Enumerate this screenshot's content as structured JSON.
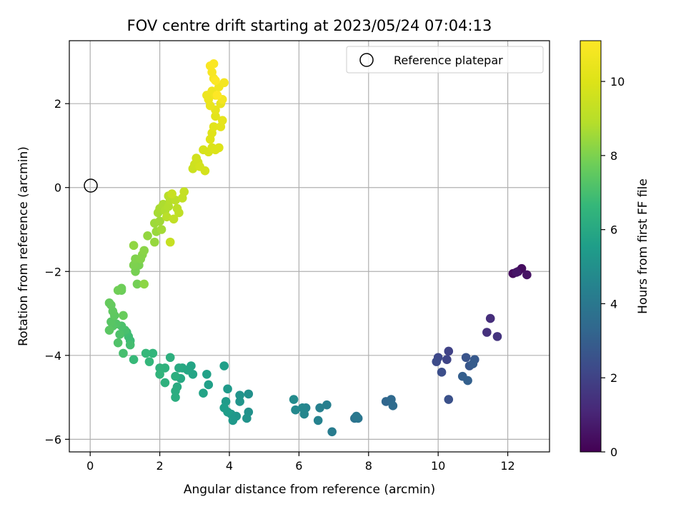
{
  "chart_data": {
    "type": "scatter",
    "title": "FOV centre drift starting at 2023/05/24 07:04:13",
    "xlabel": "Angular distance from reference (arcmin)",
    "ylabel": "Rotation from reference (arcmin)",
    "xlim": [
      -0.6,
      13.2
    ],
    "ylim": [
      -6.3,
      3.5
    ],
    "xticks": [
      0,
      2,
      4,
      6,
      8,
      10,
      12
    ],
    "yticks": [
      -6,
      -4,
      -2,
      0,
      2
    ],
    "grid": true,
    "legend": {
      "placement": "top-right",
      "entries": [
        "Reference platepar"
      ]
    },
    "colorbar": {
      "label": "Hours from first FF file",
      "range": [
        0,
        11.1
      ],
      "ticks": [
        0,
        2,
        4,
        6,
        8,
        10
      ],
      "colormap": "viridis"
    },
    "reference_point": {
      "x": 0,
      "y": 0,
      "label": "Reference platepar"
    },
    "points": [
      [
        12.15,
        -2.05,
        0.3
      ],
      [
        12.3,
        -2.0,
        0.4
      ],
      [
        12.4,
        -1.93,
        0.35
      ],
      [
        12.55,
        -2.08,
        0.5
      ],
      [
        12.25,
        -2.02,
        0.6
      ],
      [
        11.5,
        -3.12,
        1.3
      ],
      [
        11.4,
        -3.45,
        1.4
      ],
      [
        11.7,
        -3.55,
        1.5
      ],
      [
        10.3,
        -3.9,
        2.0
      ],
      [
        10.25,
        -4.1,
        2.1
      ],
      [
        10.0,
        -4.05,
        2.2
      ],
      [
        9.95,
        -4.15,
        2.3
      ],
      [
        10.1,
        -4.4,
        2.4
      ],
      [
        10.3,
        -5.05,
        2.5
      ],
      [
        10.8,
        -4.05,
        2.6
      ],
      [
        10.9,
        -4.25,
        2.7
      ],
      [
        11.05,
        -4.1,
        2.8
      ],
      [
        11.0,
        -4.2,
        2.9
      ],
      [
        10.7,
        -4.5,
        3.0
      ],
      [
        10.85,
        -4.6,
        3.05
      ],
      [
        8.5,
        -5.1,
        3.3
      ],
      [
        8.65,
        -5.05,
        3.4
      ],
      [
        8.7,
        -5.2,
        3.5
      ],
      [
        7.6,
        -5.5,
        3.8
      ],
      [
        7.7,
        -5.5,
        3.9
      ],
      [
        7.65,
        -5.45,
        4.0
      ],
      [
        6.95,
        -5.82,
        4.2
      ],
      [
        6.8,
        -5.18,
        4.3
      ],
      [
        6.6,
        -5.25,
        4.35
      ],
      [
        6.55,
        -5.55,
        4.45
      ],
      [
        6.2,
        -5.25,
        4.5
      ],
      [
        6.15,
        -5.4,
        4.6
      ],
      [
        6.1,
        -5.25,
        4.65
      ],
      [
        5.9,
        -5.3,
        4.7
      ],
      [
        5.85,
        -5.05,
        4.8
      ],
      [
        4.55,
        -4.92,
        5.0
      ],
      [
        4.55,
        -5.35,
        5.05
      ],
      [
        4.5,
        -5.5,
        5.1
      ],
      [
        4.3,
        -4.95,
        5.15
      ],
      [
        4.3,
        -5.1,
        5.2
      ],
      [
        4.2,
        -5.45,
        5.25
      ],
      [
        4.05,
        -5.4,
        5.3
      ],
      [
        4.1,
        -5.55,
        5.35
      ],
      [
        3.95,
        -4.8,
        5.4
      ],
      [
        3.9,
        -5.1,
        5.45
      ],
      [
        3.95,
        -5.35,
        5.5
      ],
      [
        3.85,
        -5.25,
        5.55
      ],
      [
        3.85,
        -4.25,
        5.6
      ],
      [
        3.4,
        -4.7,
        5.65
      ],
      [
        3.35,
        -4.45,
        5.7
      ],
      [
        3.25,
        -4.9,
        5.75
      ],
      [
        2.9,
        -4.25,
        5.8
      ],
      [
        2.95,
        -4.45,
        5.85
      ],
      [
        2.8,
        -4.35,
        5.9
      ],
      [
        2.65,
        -4.3,
        5.95
      ],
      [
        2.6,
        -4.55,
        6.0
      ],
      [
        2.55,
        -4.3,
        6.05
      ],
      [
        2.5,
        -4.75,
        6.1
      ],
      [
        2.45,
        -4.85,
        6.15
      ],
      [
        2.45,
        -5.0,
        6.2
      ],
      [
        2.45,
        -4.5,
        6.25
      ],
      [
        2.3,
        -4.05,
        6.3
      ],
      [
        2.15,
        -4.65,
        6.35
      ],
      [
        2.15,
        -4.3,
        6.4
      ],
      [
        2.0,
        -4.3,
        6.45
      ],
      [
        2.0,
        -4.45,
        6.5
      ],
      [
        1.8,
        -3.95,
        6.55
      ],
      [
        1.7,
        -4.15,
        6.6
      ],
      [
        1.6,
        -3.95,
        6.65
      ],
      [
        1.25,
        -4.1,
        6.7
      ],
      [
        1.15,
        -3.65,
        6.8
      ],
      [
        1.1,
        -3.55,
        6.85
      ],
      [
        1.05,
        -3.45,
        6.9
      ],
      [
        1.15,
        -3.75,
        6.95
      ],
      [
        0.95,
        -3.95,
        7.0
      ],
      [
        1.0,
        -3.4,
        7.05
      ],
      [
        0.9,
        -3.3,
        7.1
      ],
      [
        0.85,
        -3.5,
        7.15
      ],
      [
        0.8,
        -3.7,
        7.2
      ],
      [
        0.75,
        -3.25,
        7.25
      ],
      [
        0.65,
        -3.3,
        7.3
      ],
      [
        0.6,
        -3.2,
        7.35
      ],
      [
        0.55,
        -3.4,
        7.4
      ],
      [
        0.7,
        -3.05,
        7.45
      ],
      [
        0.65,
        -2.95,
        7.5
      ],
      [
        0.6,
        -2.8,
        7.55
      ],
      [
        0.55,
        -2.75,
        7.6
      ],
      [
        0.95,
        -3.05,
        7.65
      ],
      [
        0.9,
        -2.45,
        7.7
      ],
      [
        0.9,
        -2.4,
        7.75
      ],
      [
        0.8,
        -2.45,
        7.8
      ],
      [
        1.35,
        -2.3,
        7.85
      ],
      [
        1.3,
        -2.0,
        7.9
      ],
      [
        1.4,
        -1.85,
        7.95
      ],
      [
        1.25,
        -1.85,
        8.0
      ],
      [
        1.3,
        -1.7,
        8.05
      ],
      [
        1.45,
        -1.7,
        8.1
      ],
      [
        1.5,
        -1.6,
        8.15
      ],
      [
        1.55,
        -1.5,
        8.2
      ],
      [
        1.55,
        -2.3,
        8.25
      ],
      [
        1.25,
        -1.38,
        8.3
      ],
      [
        1.65,
        -1.15,
        8.35
      ],
      [
        1.85,
        -1.3,
        8.4
      ],
      [
        1.9,
        -1.05,
        8.45
      ],
      [
        1.85,
        -0.85,
        8.5
      ],
      [
        2.0,
        -0.8,
        8.55
      ],
      [
        2.05,
        -1.0,
        8.6
      ],
      [
        1.95,
        -0.6,
        8.65
      ],
      [
        2.0,
        -0.5,
        8.7
      ],
      [
        2.1,
        -0.4,
        8.75
      ],
      [
        2.15,
        -0.55,
        8.8
      ],
      [
        2.25,
        -0.45,
        8.85
      ],
      [
        2.3,
        -0.3,
        8.9
      ],
      [
        2.25,
        -0.2,
        8.95
      ],
      [
        2.2,
        -0.7,
        9.0
      ],
      [
        2.45,
        -0.3,
        9.05
      ],
      [
        2.5,
        -0.5,
        9.1
      ],
      [
        2.55,
        -0.6,
        9.15
      ],
      [
        2.4,
        -0.75,
        9.2
      ],
      [
        2.65,
        -0.25,
        9.25
      ],
      [
        2.7,
        -0.1,
        9.3
      ],
      [
        2.3,
        -1.3,
        9.35
      ],
      [
        2.35,
        -0.15,
        9.4
      ],
      [
        2.95,
        0.45,
        9.5
      ],
      [
        3.0,
        0.55,
        9.55
      ],
      [
        3.1,
        0.6,
        9.6
      ],
      [
        3.05,
        0.7,
        9.65
      ],
      [
        3.15,
        0.5,
        9.7
      ],
      [
        3.3,
        0.4,
        9.75
      ],
      [
        3.25,
        0.9,
        9.8
      ],
      [
        3.4,
        0.85,
        9.85
      ],
      [
        3.5,
        0.95,
        9.9
      ],
      [
        3.6,
        0.9,
        9.95
      ],
      [
        3.7,
        0.95,
        10.0
      ],
      [
        3.45,
        1.15,
        10.05
      ],
      [
        3.5,
        1.3,
        10.1
      ],
      [
        3.55,
        1.45,
        10.15
      ],
      [
        3.6,
        1.7,
        10.2
      ],
      [
        3.75,
        1.45,
        10.25
      ],
      [
        3.8,
        1.6,
        10.3
      ],
      [
        3.6,
        1.85,
        10.35
      ],
      [
        3.75,
        2.0,
        10.4
      ],
      [
        3.45,
        1.95,
        10.45
      ],
      [
        3.4,
        2.1,
        10.5
      ],
      [
        3.35,
        2.2,
        10.55
      ],
      [
        3.5,
        2.3,
        10.6
      ],
      [
        3.6,
        2.2,
        10.65
      ],
      [
        3.7,
        2.4,
        10.7
      ],
      [
        3.8,
        2.1,
        10.75
      ],
      [
        3.85,
        2.5,
        10.8
      ],
      [
        3.55,
        2.6,
        10.85
      ],
      [
        3.5,
        2.75,
        10.9
      ],
      [
        3.45,
        2.9,
        10.95
      ],
      [
        3.55,
        2.95,
        11.0
      ],
      [
        3.6,
        2.55,
        11.05
      ],
      [
        3.65,
        2.2,
        11.1
      ]
    ]
  }
}
